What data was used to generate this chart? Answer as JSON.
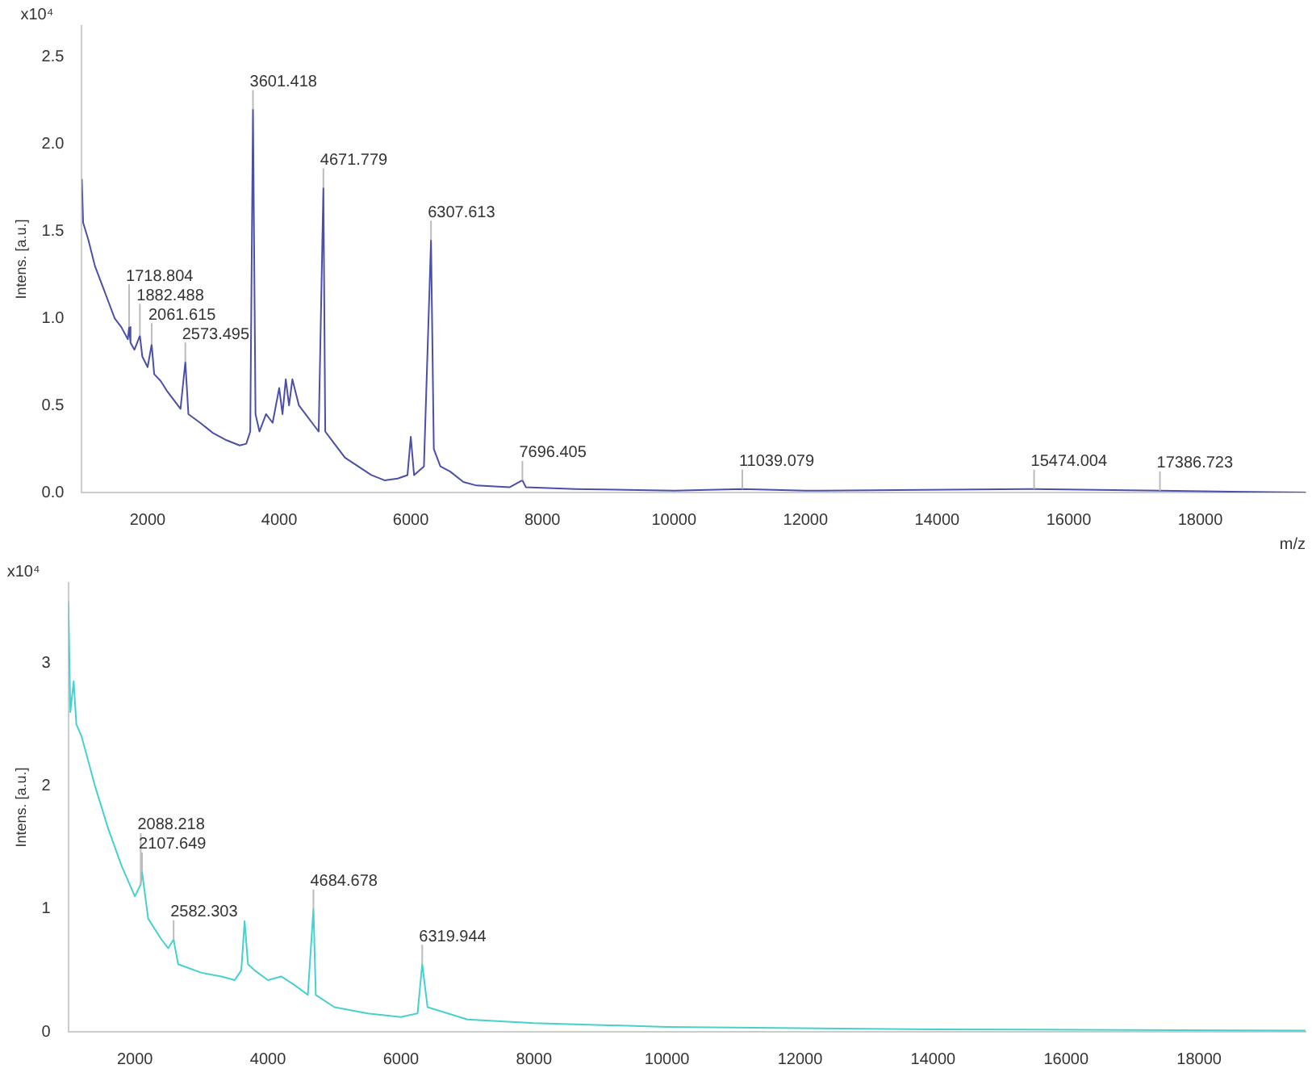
{
  "chart_data": [
    {
      "type": "line",
      "ylabel": "Intens. [a.u.]",
      "xlabel": "m/z",
      "xlim": [
        1000,
        19600
      ],
      "xticks": [
        2000,
        4000,
        6000,
        8000,
        10000,
        12000,
        14000,
        16000,
        18000
      ],
      "ylim": [
        0,
        2.68
      ],
      "yticks": [
        {
          "value": 0,
          "label": "0.0"
        },
        {
          "value": 0.5,
          "label": "0.5"
        },
        {
          "value": 1,
          "label": "1.0"
        },
        {
          "value": 1.5,
          "label": "1.5"
        },
        {
          "value": 2,
          "label": "2.0"
        },
        {
          "value": 2.5,
          "label": "2.5"
        }
      ],
      "grid": false,
      "legend": false,
      "marker": "none",
      "series": [
        {
          "color": "#4b4fa8",
          "x": [
            1000,
            1020,
            1100,
            1200,
            1300,
            1400,
            1500,
            1600,
            1700,
            1718.804,
            1740,
            1800,
            1882.488,
            1920,
            2000,
            2061.615,
            2100,
            2200,
            2300,
            2400,
            2500,
            2573.495,
            2620,
            2800,
            3000,
            3200,
            3400,
            3500,
            3560,
            3601.418,
            3640,
            3700,
            3800,
            3900,
            4000,
            4050,
            4100,
            4150,
            4200,
            4300,
            4400,
            4500,
            4600,
            4671.779,
            4700,
            4800,
            5000,
            5200,
            5400,
            5600,
            5800,
            5950,
            6000,
            6050,
            6200,
            6307.613,
            6350,
            6450,
            6600,
            6800,
            7000,
            7500,
            7696.405,
            7750,
            8500,
            10000,
            11039.079,
            12000,
            15474.004,
            17386.723,
            19600
          ],
          "values": [
            1.8,
            1.55,
            1.45,
            1.3,
            1.2,
            1.1,
            1.0,
            0.95,
            0.88,
            0.95,
            0.86,
            0.82,
            0.9,
            0.78,
            0.72,
            0.85,
            0.68,
            0.64,
            0.58,
            0.53,
            0.48,
            0.75,
            0.45,
            0.4,
            0.34,
            0.3,
            0.27,
            0.28,
            0.35,
            2.2,
            0.45,
            0.35,
            0.45,
            0.4,
            0.6,
            0.45,
            0.65,
            0.5,
            0.65,
            0.5,
            0.45,
            0.4,
            0.35,
            1.75,
            0.35,
            0.3,
            0.2,
            0.15,
            0.1,
            0.07,
            0.08,
            0.1,
            0.32,
            0.1,
            0.15,
            1.45,
            0.25,
            0.15,
            0.12,
            0.06,
            0.04,
            0.03,
            0.07,
            0.03,
            0.02,
            0.01,
            0.02,
            0.01,
            0.02,
            0.01,
            0
          ]
        }
      ],
      "annotations": [
        "x10⁴",
        {
          "text": "3601.418",
          "x": 3601.418,
          "y": 2.2
        },
        {
          "text": "1718.804",
          "x": 1718.804,
          "y": 0.95
        },
        {
          "text": "4671.779",
          "x": 4671.779,
          "y": 1.75
        },
        {
          "text": "6307.613",
          "x": 6307.613,
          "y": 1.45
        },
        {
          "text": "1882.488",
          "x": 1882.488,
          "y": 0.9
        },
        {
          "text": "2061.615",
          "x": 2061.615,
          "y": 0.85
        },
        {
          "text": "2573.495",
          "x": 2573.495,
          "y": 0.75
        },
        {
          "text": "7696.405",
          "x": 7696.405,
          "y": 0.07
        },
        {
          "text": "11039.079",
          "x": 11039.079,
          "y": 0.02
        },
        {
          "text": "15474.004",
          "x": 15474.004,
          "y": 0.02
        },
        {
          "text": "17386.723",
          "x": 17386.723,
          "y": 0.01
        }
      ]
    },
    {
      "type": "line",
      "ylabel": "Intens. [a.u.]",
      "xlim": [
        1000,
        19600
      ],
      "xticks": [
        2000,
        4000,
        6000,
        8000,
        10000,
        12000,
        14000,
        16000,
        18000
      ],
      "ylim": [
        0,
        3.65
      ],
      "yticks": [
        0,
        1,
        2,
        3
      ],
      "grid": false,
      "legend": false,
      "marker": "none",
      "series": [
        {
          "color": "#46d0d0",
          "x": [
            1000,
            1030,
            1080,
            1120,
            1200,
            1400,
            1600,
            1800,
            2000,
            2088.218,
            2107.649,
            2200,
            2400,
            2500,
            2582.303,
            2650,
            3000,
            3300,
            3500,
            3600,
            3650,
            3700,
            3800,
            4000,
            4200,
            4400,
            4600,
            4684.678,
            4720,
            5000,
            5500,
            6000,
            6250,
            6319.944,
            6400,
            7000,
            8000,
            10000,
            14000,
            19600
          ],
          "values": [
            3.5,
            2.6,
            2.85,
            2.5,
            2.4,
            2.0,
            1.65,
            1.35,
            1.1,
            1.2,
            1.3,
            0.92,
            0.75,
            0.68,
            0.75,
            0.55,
            0.48,
            0.45,
            0.42,
            0.5,
            0.9,
            0.55,
            0.5,
            0.42,
            0.45,
            0.38,
            0.3,
            1.0,
            0.3,
            0.2,
            0.15,
            0.12,
            0.15,
            0.55,
            0.2,
            0.1,
            0.07,
            0.04,
            0.02,
            0.01
          ]
        }
      ],
      "annotations": [
        "x10⁴",
        {
          "text": "2088.218",
          "x": 2088.218,
          "y": 1.2
        },
        {
          "text": "2107.649",
          "x": 2107.649,
          "y": 1.3
        },
        {
          "text": "2582.303",
          "x": 2582.303,
          "y": 0.75
        },
        {
          "text": "4684.678",
          "x": 4684.678,
          "y": 1.0
        },
        {
          "text": "6319.944",
          "x": 6319.944,
          "y": 0.55
        }
      ]
    }
  ]
}
